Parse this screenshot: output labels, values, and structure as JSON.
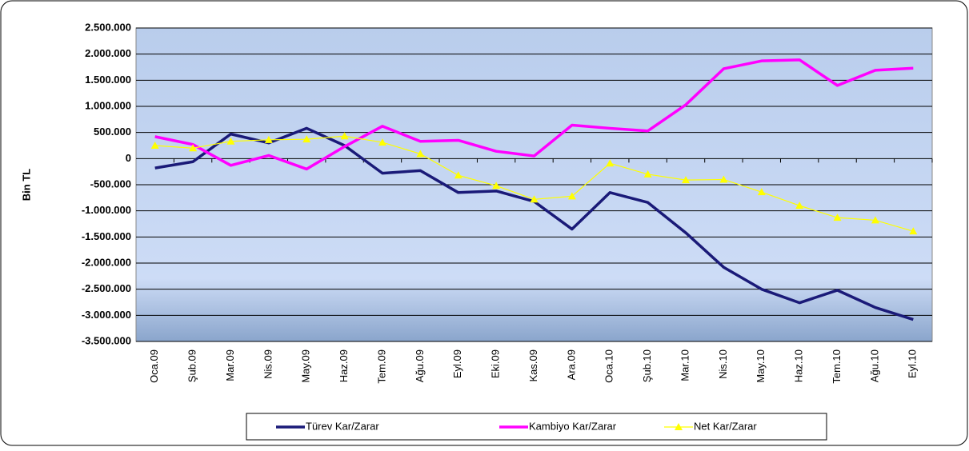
{
  "chart_data": {
    "type": "line",
    "ylabel": "Bin TL",
    "categories": [
      "Oca.09",
      "Şub.09",
      "Mar.09",
      "Nis.09",
      "May.09",
      "Haz.09",
      "Tem.09",
      "Ağu.09",
      "Eyl.09",
      "Eki.09",
      "Kas.09",
      "Ara.09",
      "Oca.10",
      "Şub.10",
      "Mar.10",
      "Nis.10",
      "May.10",
      "Haz.10",
      "Tem.10",
      "Ağu.10",
      "Eyl.10"
    ],
    "series": [
      {
        "name": "Türev Kar/Zarar",
        "color": "#1a1a78",
        "values": [
          -180000,
          -60000,
          470000,
          300000,
          580000,
          250000,
          -280000,
          -230000,
          -650000,
          -620000,
          -820000,
          -1350000,
          -650000,
          -840000,
          -1420000,
          -2080000,
          -2500000,
          -2760000,
          -2520000,
          -2850000,
          -3080000
        ]
      },
      {
        "name": "Kambiyo Kar/Zarar",
        "color": "#ff00ff",
        "values": [
          420000,
          270000,
          -130000,
          60000,
          -200000,
          230000,
          620000,
          330000,
          350000,
          140000,
          50000,
          640000,
          580000,
          530000,
          1030000,
          1720000,
          1870000,
          1890000,
          1400000,
          1690000,
          1730000
        ]
      },
      {
        "name": "Net Kar/Zarar",
        "color": "#ffff00",
        "marker": "triangle",
        "values": [
          250000,
          200000,
          330000,
          360000,
          370000,
          430000,
          310000,
          90000,
          -320000,
          -520000,
          -780000,
          -720000,
          -90000,
          -300000,
          -410000,
          -400000,
          -640000,
          -900000,
          -1130000,
          -1180000,
          -1390000
        ]
      }
    ],
    "ylim": [
      -3500000,
      2500000
    ],
    "yticks": [
      {
        "value": 2500000,
        "label": "2.500.000"
      },
      {
        "value": 2000000,
        "label": "2.000.000"
      },
      {
        "value": 1500000,
        "label": "1.500.000"
      },
      {
        "value": 1000000,
        "label": "1.000.000"
      },
      {
        "value": 500000,
        "label": "500.000"
      },
      0,
      {
        "value": -500000,
        "label": "-500.000"
      },
      {
        "value": -1000000,
        "label": "-1.000.000"
      },
      {
        "value": -1500000,
        "label": "-1.500.000"
      },
      {
        "value": -2000000,
        "label": "-2.000.000"
      },
      {
        "value": -2500000,
        "label": "-2.500.000"
      },
      {
        "value": -3000000,
        "label": "-3.000.000"
      },
      {
        "value": -3500000,
        "label": "-3.500.000"
      }
    ],
    "grid": true,
    "legend": "bottom"
  }
}
